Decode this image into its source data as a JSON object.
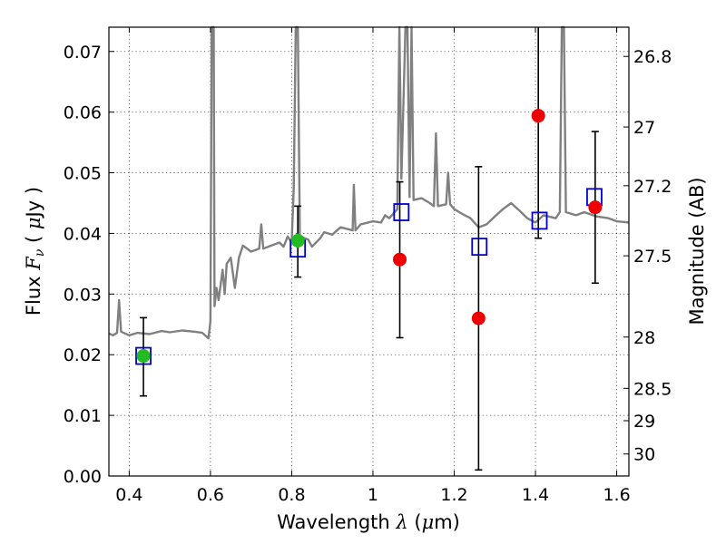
{
  "chart_data": {
    "type": "scatter",
    "xlabel": {
      "pre": "Wavelength  ",
      "sym": "λ",
      "post": " (",
      "mu": "μ",
      "unit": "m)"
    },
    "ylabel": {
      "pre": "Flux  ",
      "sym": "F",
      "sub": "ν",
      "post": "  ( ",
      "mu": "μ",
      "unit": "Jy )"
    },
    "ylabel_right": "Magnitude (AB)",
    "xlim": [
      0.35,
      1.63
    ],
    "ylim": [
      0.0,
      0.074
    ],
    "x_ticks": [
      0.4,
      0.6,
      0.8,
      1.0,
      1.2,
      1.4,
      1.6
    ],
    "x_tick_labels": [
      "0.4",
      "0.6",
      "0.8",
      "1",
      "1.2",
      "1.4",
      "1.6"
    ],
    "y_ticks": [
      0.0,
      0.01,
      0.02,
      0.03,
      0.04,
      0.05,
      0.06,
      0.07
    ],
    "y_tick_labels": [
      "0.00",
      "0.01",
      "0.02",
      "0.03",
      "0.04",
      "0.05",
      "0.06",
      "0.07"
    ],
    "right_ticks_mag": [
      26.8,
      27,
      27.2,
      27.5,
      28,
      28.5,
      29,
      30
    ],
    "right_tick_labels": [
      "26.8",
      "27",
      "27.2",
      "27.5",
      "28",
      "28.5",
      "29",
      "30"
    ],
    "grid": true,
    "colors": {
      "spectrum": "#808080",
      "model": "#0000cc",
      "observed": "#ee0000",
      "detection": "#22bb22",
      "errorbar": "#000000"
    },
    "spectrum": [
      [
        0.35,
        0.0235
      ],
      [
        0.36,
        0.0232
      ],
      [
        0.37,
        0.0236
      ],
      [
        0.375,
        0.029
      ],
      [
        0.38,
        0.0238
      ],
      [
        0.4,
        0.0232
      ],
      [
        0.42,
        0.0236
      ],
      [
        0.45,
        0.0234
      ],
      [
        0.48,
        0.0239
      ],
      [
        0.5,
        0.0237
      ],
      [
        0.53,
        0.024
      ],
      [
        0.56,
        0.0238
      ],
      [
        0.58,
        0.0236
      ],
      [
        0.595,
        0.0227
      ],
      [
        0.6,
        0.0255
      ],
      [
        0.603,
        0.074
      ],
      [
        0.608,
        0.074
      ],
      [
        0.61,
        0.028
      ],
      [
        0.615,
        0.031
      ],
      [
        0.62,
        0.029
      ],
      [
        0.63,
        0.034
      ],
      [
        0.635,
        0.03
      ],
      [
        0.64,
        0.035
      ],
      [
        0.65,
        0.036
      ],
      [
        0.66,
        0.031
      ],
      [
        0.67,
        0.036
      ],
      [
        0.68,
        0.038
      ],
      [
        0.7,
        0.037
      ],
      [
        0.72,
        0.0375
      ],
      [
        0.725,
        0.0415
      ],
      [
        0.73,
        0.0375
      ],
      [
        0.75,
        0.038
      ],
      [
        0.77,
        0.0385
      ],
      [
        0.78,
        0.0378
      ],
      [
        0.79,
        0.0395
      ],
      [
        0.8,
        0.0385
      ],
      [
        0.805,
        0.0475
      ],
      [
        0.81,
        0.074
      ],
      [
        0.815,
        0.074
      ],
      [
        0.82,
        0.0395
      ],
      [
        0.84,
        0.039
      ],
      [
        0.85,
        0.0378
      ],
      [
        0.87,
        0.0392
      ],
      [
        0.88,
        0.0402
      ],
      [
        0.9,
        0.0398
      ],
      [
        0.92,
        0.041
      ],
      [
        0.95,
        0.0405
      ],
      [
        0.953,
        0.048
      ],
      [
        0.957,
        0.0405
      ],
      [
        0.97,
        0.0415
      ],
      [
        1.0,
        0.042
      ],
      [
        1.02,
        0.0418
      ],
      [
        1.03,
        0.043
      ],
      [
        1.04,
        0.0425
      ],
      [
        1.06,
        0.044
      ],
      [
        1.065,
        0.074
      ],
      [
        1.07,
        0.049
      ],
      [
        1.08,
        0.074
      ],
      [
        1.085,
        0.074
      ],
      [
        1.09,
        0.046
      ],
      [
        1.095,
        0.074
      ],
      [
        1.1,
        0.0455
      ],
      [
        1.12,
        0.0458
      ],
      [
        1.14,
        0.045
      ],
      [
        1.15,
        0.0445
      ],
      [
        1.155,
        0.0565
      ],
      [
        1.16,
        0.0445
      ],
      [
        1.18,
        0.0448
      ],
      [
        1.185,
        0.05
      ],
      [
        1.19,
        0.0448
      ],
      [
        1.2,
        0.044
      ],
      [
        1.22,
        0.0432
      ],
      [
        1.24,
        0.0425
      ],
      [
        1.26,
        0.041
      ],
      [
        1.28,
        0.0415
      ],
      [
        1.3,
        0.0428
      ],
      [
        1.32,
        0.044
      ],
      [
        1.34,
        0.045
      ],
      [
        1.36,
        0.0438
      ],
      [
        1.38,
        0.0425
      ],
      [
        1.4,
        0.0418
      ],
      [
        1.42,
        0.043
      ],
      [
        1.45,
        0.0425
      ],
      [
        1.46,
        0.0435
      ],
      [
        1.465,
        0.074
      ],
      [
        1.47,
        0.074
      ],
      [
        1.475,
        0.0435
      ],
      [
        1.5,
        0.043
      ],
      [
        1.52,
        0.0435
      ],
      [
        1.55,
        0.0428
      ],
      [
        1.58,
        0.0425
      ],
      [
        1.6,
        0.042
      ],
      [
        1.63,
        0.0418
      ]
    ],
    "model_points": [
      {
        "x": 0.435,
        "y": 0.0198
      },
      {
        "x": 0.815,
        "y": 0.0375
      },
      {
        "x": 1.07,
        "y": 0.0435
      },
      {
        "x": 1.262,
        "y": 0.0378
      },
      {
        "x": 1.41,
        "y": 0.0421
      },
      {
        "x": 1.545,
        "y": 0.046
      }
    ],
    "detected_points": [
      {
        "x": 0.435,
        "y": 0.0198,
        "yerr_low": 0.0132,
        "yerr_high": 0.0261
      },
      {
        "x": 0.815,
        "y": 0.0388,
        "yerr_low": 0.0328,
        "yerr_high": 0.0445
      }
    ],
    "observed_points": [
      {
        "x": 1.066,
        "y": 0.0357,
        "yerr_low": 0.0228,
        "yerr_high": 0.0485
      },
      {
        "x": 1.26,
        "y": 0.026,
        "yerr_low": 0.001,
        "yerr_high": 0.051
      },
      {
        "x": 1.407,
        "y": 0.0594,
        "yerr_low": 0.0392,
        "yerr_high": 0.074
      },
      {
        "x": 1.547,
        "y": 0.0443,
        "yerr_low": 0.0318,
        "yerr_high": 0.0568
      }
    ]
  }
}
